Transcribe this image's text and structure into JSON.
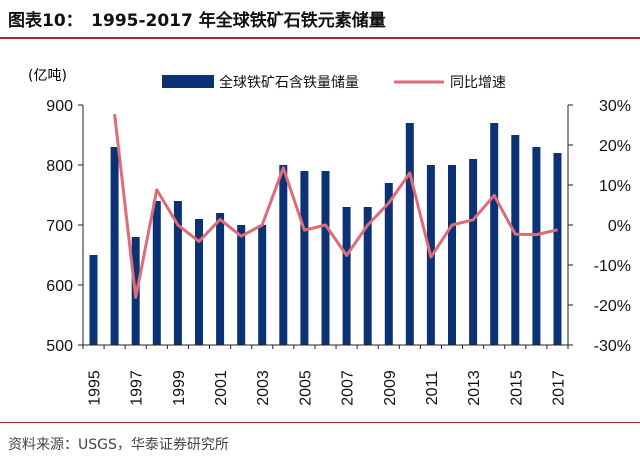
{
  "header": {
    "title": "图表10：　1995-2017 年全球铁矿石铁元素储量"
  },
  "footer": {
    "source": "资料来源：USGS，华泰证券研究所"
  },
  "colors": {
    "bar": "#0c3276",
    "line": "#e06b78",
    "rule": "#b3262e"
  },
  "chart_data": {
    "type": "bar",
    "title": "1995-2017 年全球铁矿石铁元素储量",
    "unit_label": "(亿吨)",
    "categories": [
      "1995",
      "1996",
      "1997",
      "1998",
      "1999",
      "2000",
      "2001",
      "2002",
      "2003",
      "2004",
      "2005",
      "2006",
      "2007",
      "2008",
      "2009",
      "2010",
      "2011",
      "2012",
      "2013",
      "2014",
      "2015",
      "2016",
      "2017"
    ],
    "x_tick_labels": [
      "1995",
      "1997",
      "1999",
      "2001",
      "2003",
      "2005",
      "2007",
      "2009",
      "2011",
      "2013",
      "2015",
      "2017"
    ],
    "series": [
      {
        "name": "全球铁矿石含铁量储量",
        "type": "bar",
        "axis": "left",
        "values": [
          650,
          830,
          680,
          740,
          740,
          710,
          720,
          700,
          700,
          800,
          790,
          790,
          730,
          730,
          770,
          870,
          800,
          800,
          810,
          870,
          850,
          830,
          820
        ]
      },
      {
        "name": "同比增速",
        "type": "line",
        "axis": "right",
        "values": [
          null,
          27.7,
          -18.1,
          8.8,
          0.0,
          -4.1,
          1.4,
          -2.8,
          0.0,
          14.3,
          -1.3,
          0.0,
          -7.6,
          0.0,
          5.5,
          13.0,
          -8.0,
          0.0,
          1.3,
          7.4,
          -2.3,
          -2.4,
          -1.2
        ]
      }
    ],
    "y_left": {
      "min": 500,
      "max": 900,
      "ticks": [
        "500",
        "600",
        "700",
        "800",
        "900"
      ]
    },
    "y_right": {
      "min": -30,
      "max": 30,
      "ticks": [
        "-30%",
        "-20%",
        "-10%",
        "0%",
        "10%",
        "20%",
        "30%"
      ]
    },
    "legend_position": "top",
    "grid": false
  }
}
